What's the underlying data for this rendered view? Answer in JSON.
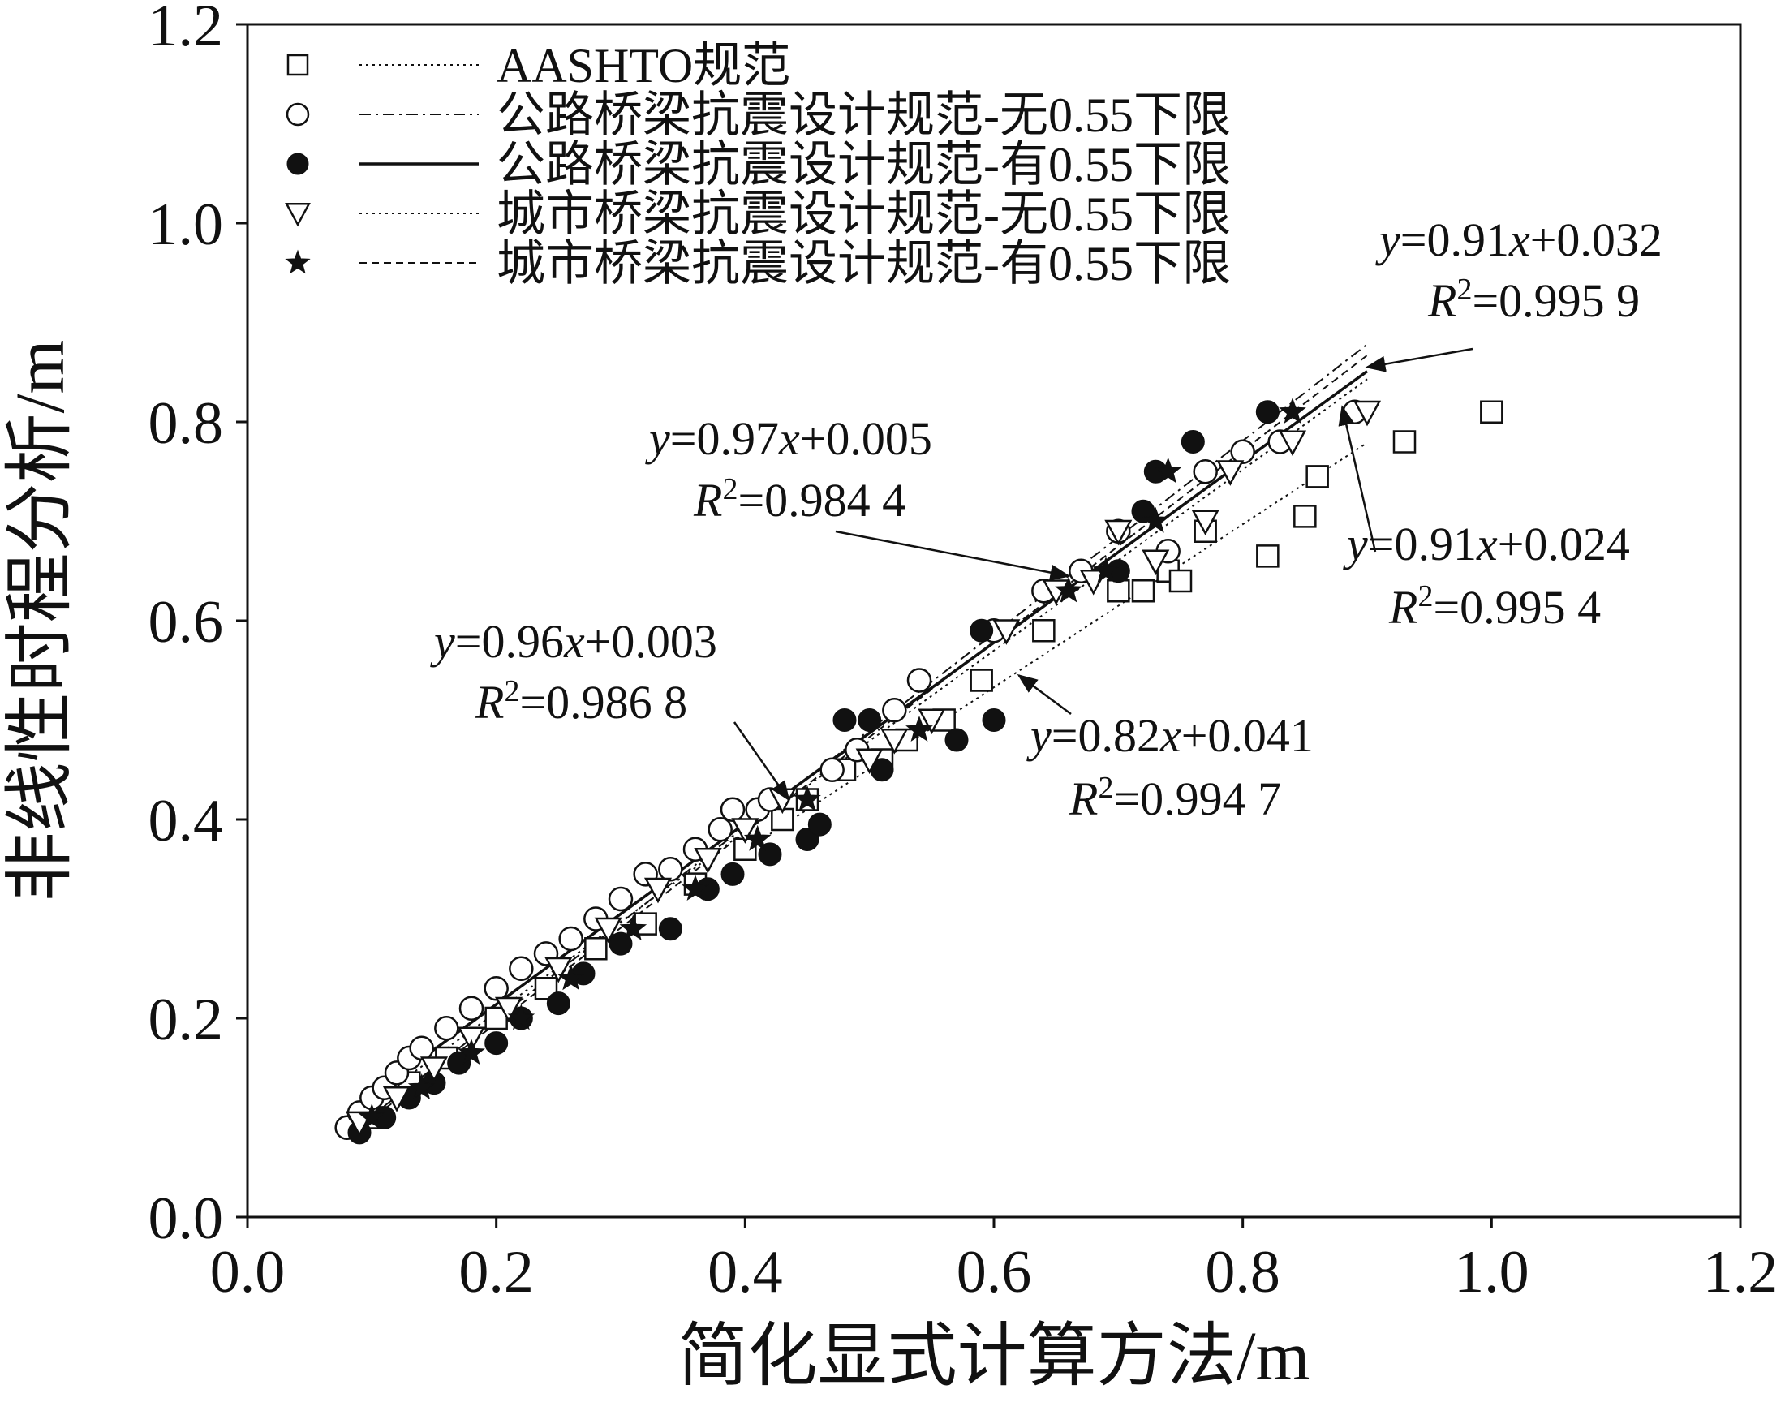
{
  "chart_data": {
    "type": "scatter",
    "xlabel": "简化显式计算方法/m",
    "ylabel": "非线性时程分析/m",
    "xlim": [
      0.0,
      1.2
    ],
    "ylim": [
      0.0,
      1.2
    ],
    "xticks": [
      "0.0",
      "0.2",
      "0.4",
      "0.6",
      "0.8",
      "1.0",
      "1.2"
    ],
    "yticks": [
      "0.0",
      "0.2",
      "0.4",
      "0.6",
      "0.8",
      "1.0",
      "1.2"
    ],
    "legend_position": "top-left",
    "series": [
      {
        "name": "AASHTO规范",
        "marker": "square",
        "line_style": "dotted",
        "fit": {
          "slope": 0.82,
          "intercept": 0.041,
          "r2": 0.9947,
          "x_range": [
            0.42,
            0.9
          ]
        },
        "points": [
          [
            0.1,
            0.1
          ],
          [
            0.13,
            0.135
          ],
          [
            0.16,
            0.16
          ],
          [
            0.2,
            0.2
          ],
          [
            0.24,
            0.23
          ],
          [
            0.28,
            0.27
          ],
          [
            0.32,
            0.295
          ],
          [
            0.36,
            0.335
          ],
          [
            0.4,
            0.37
          ],
          [
            0.43,
            0.4
          ],
          [
            0.45,
            0.42
          ],
          [
            0.48,
            0.45
          ],
          [
            0.51,
            0.46
          ],
          [
            0.53,
            0.48
          ],
          [
            0.56,
            0.5
          ],
          [
            0.59,
            0.54
          ],
          [
            0.64,
            0.59
          ],
          [
            0.7,
            0.63
          ],
          [
            0.72,
            0.63
          ],
          [
            0.74,
            0.65
          ],
          [
            0.75,
            0.64
          ],
          [
            0.77,
            0.69
          ],
          [
            0.82,
            0.665
          ],
          [
            0.85,
            0.705
          ],
          [
            0.86,
            0.745
          ],
          [
            0.93,
            0.78
          ],
          [
            1.0,
            0.81
          ]
        ]
      },
      {
        "name": "公路桥梁抗震设计规范-无0.55下限",
        "marker": "circle-open",
        "line_style": "dash-dot",
        "fit": {
          "slope": 0.97,
          "intercept": 0.005,
          "r2": 0.9844,
          "x_range": [
            0.08,
            0.9
          ]
        },
        "points": [
          [
            0.08,
            0.09
          ],
          [
            0.09,
            0.105
          ],
          [
            0.1,
            0.12
          ],
          [
            0.11,
            0.13
          ],
          [
            0.12,
            0.145
          ],
          [
            0.13,
            0.16
          ],
          [
            0.14,
            0.17
          ],
          [
            0.16,
            0.19
          ],
          [
            0.18,
            0.21
          ],
          [
            0.2,
            0.23
          ],
          [
            0.22,
            0.25
          ],
          [
            0.24,
            0.265
          ],
          [
            0.26,
            0.28
          ],
          [
            0.28,
            0.3
          ],
          [
            0.3,
            0.32
          ],
          [
            0.32,
            0.345
          ],
          [
            0.34,
            0.35
          ],
          [
            0.36,
            0.37
          ],
          [
            0.38,
            0.39
          ],
          [
            0.39,
            0.41
          ],
          [
            0.41,
            0.41
          ],
          [
            0.42,
            0.42
          ],
          [
            0.47,
            0.45
          ],
          [
            0.49,
            0.47
          ],
          [
            0.52,
            0.51
          ],
          [
            0.54,
            0.54
          ],
          [
            0.6,
            0.59
          ],
          [
            0.64,
            0.63
          ],
          [
            0.67,
            0.65
          ],
          [
            0.7,
            0.69
          ],
          [
            0.74,
            0.67
          ],
          [
            0.77,
            0.75
          ],
          [
            0.8,
            0.77
          ],
          [
            0.83,
            0.78
          ],
          [
            0.89,
            0.81
          ]
        ]
      },
      {
        "name": "公路桥梁抗震设计规范-有0.55下限",
        "marker": "circle-filled",
        "line_style": "solid",
        "fit": {
          "slope": 0.91,
          "intercept": 0.032,
          "r2": 0.9959,
          "x_range": [
            0.08,
            0.9
          ]
        },
        "points": [
          [
            0.09,
            0.085
          ],
          [
            0.11,
            0.1
          ],
          [
            0.13,
            0.12
          ],
          [
            0.15,
            0.135
          ],
          [
            0.17,
            0.155
          ],
          [
            0.2,
            0.175
          ],
          [
            0.22,
            0.2
          ],
          [
            0.25,
            0.215
          ],
          [
            0.27,
            0.245
          ],
          [
            0.3,
            0.275
          ],
          [
            0.34,
            0.29
          ],
          [
            0.37,
            0.33
          ],
          [
            0.39,
            0.345
          ],
          [
            0.42,
            0.365
          ],
          [
            0.45,
            0.38
          ],
          [
            0.46,
            0.395
          ],
          [
            0.48,
            0.5
          ],
          [
            0.5,
            0.5
          ],
          [
            0.51,
            0.45
          ],
          [
            0.57,
            0.48
          ],
          [
            0.6,
            0.5
          ],
          [
            0.59,
            0.59
          ],
          [
            0.7,
            0.65
          ],
          [
            0.72,
            0.71
          ],
          [
            0.73,
            0.75
          ],
          [
            0.76,
            0.78
          ],
          [
            0.82,
            0.81
          ]
        ]
      },
      {
        "name": "城市桥梁抗震设计规范-无0.55下限",
        "marker": "triangle-down-open",
        "line_style": "dotted",
        "fit": {
          "slope": 0.91,
          "intercept": 0.024,
          "r2": 0.9954,
          "x_range": [
            0.08,
            0.9
          ]
        },
        "points": [
          [
            0.09,
            0.095
          ],
          [
            0.12,
            0.12
          ],
          [
            0.15,
            0.15
          ],
          [
            0.18,
            0.18
          ],
          [
            0.21,
            0.21
          ],
          [
            0.25,
            0.25
          ],
          [
            0.29,
            0.29
          ],
          [
            0.33,
            0.33
          ],
          [
            0.37,
            0.36
          ],
          [
            0.4,
            0.39
          ],
          [
            0.43,
            0.42
          ],
          [
            0.5,
            0.46
          ],
          [
            0.52,
            0.48
          ],
          [
            0.55,
            0.5
          ],
          [
            0.61,
            0.59
          ],
          [
            0.65,
            0.63
          ],
          [
            0.68,
            0.64
          ],
          [
            0.7,
            0.69
          ],
          [
            0.73,
            0.66
          ],
          [
            0.77,
            0.7
          ],
          [
            0.79,
            0.75
          ],
          [
            0.84,
            0.78
          ],
          [
            0.9,
            0.81
          ]
        ]
      },
      {
        "name": "城市桥梁抗震设计规范-有0.55下限",
        "marker": "star-filled",
        "line_style": "dashed",
        "fit": {
          "slope": 0.96,
          "intercept": 0.003,
          "r2": 0.9868,
          "x_range": [
            0.08,
            0.9
          ]
        },
        "points": [
          [
            0.1,
            0.1
          ],
          [
            0.14,
            0.13
          ],
          [
            0.18,
            0.165
          ],
          [
            0.22,
            0.2
          ],
          [
            0.26,
            0.24
          ],
          [
            0.31,
            0.29
          ],
          [
            0.36,
            0.33
          ],
          [
            0.41,
            0.38
          ],
          [
            0.45,
            0.42
          ],
          [
            0.54,
            0.49
          ],
          [
            0.66,
            0.63
          ],
          [
            0.69,
            0.65
          ],
          [
            0.73,
            0.7
          ],
          [
            0.74,
            0.75
          ],
          [
            0.84,
            0.81
          ]
        ]
      }
    ],
    "annotations": [
      {
        "equation": [
          "y",
          "=0.91",
          "x",
          "+0.032"
        ],
        "r2_text": "=0.995 9",
        "arrow_to": [
          0.9,
          0.855
        ]
      },
      {
        "equation": [
          "y",
          "=0.97",
          "x",
          "+0.005"
        ],
        "r2_text": "=0.984 4",
        "arrow_to": [
          0.66,
          0.645
        ]
      },
      {
        "equation": [
          "y",
          "=0.91",
          "x",
          "+0.024"
        ],
        "r2_text": "=0.995 4",
        "arrow_to": [
          0.88,
          0.815
        ]
      },
      {
        "equation": [
          "y",
          "=0.96",
          "x",
          "+0.003"
        ],
        "r2_text": "=0.986 8",
        "arrow_to": [
          0.435,
          0.42
        ]
      },
      {
        "equation": [
          "y",
          "=0.82",
          "x",
          "+0.041"
        ],
        "r2_text": "=0.994 7",
        "arrow_to": [
          0.62,
          0.545
        ]
      }
    ],
    "r2_label": "R",
    "r2_superscript": "2"
  }
}
